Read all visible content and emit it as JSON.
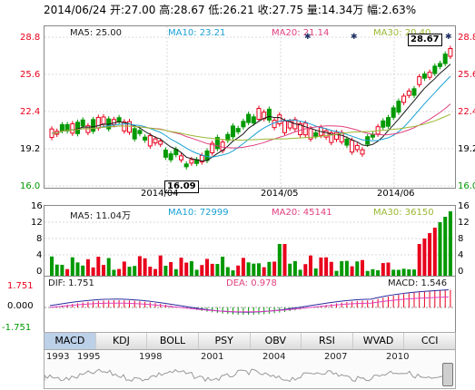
{
  "header": {
    "text": "2014/06/24 开:27.00  高:28.67  低:26.21  收:27.75  量:14.34万  幅:2.63%"
  },
  "price": {
    "ma5": "MA5: 25.00",
    "ma10": "MA10: 23.21",
    "ma20": "MA20: 21.14",
    "ma30": "MA30: 20.40",
    "y_ticks": [
      "28.8",
      "25.6",
      "22.4",
      "19.2",
      "16.0"
    ],
    "high_label": "28.67",
    "low_label": "16.09",
    "dates": [
      "2014/04",
      "2014/05",
      "2014/06"
    ],
    "colors": {
      "up": "#e8001c",
      "down": "#009900",
      "ma5": "#1a1a1a",
      "ma10": "#1ba1d4",
      "ma20": "#e0407e",
      "ma30": "#9ab832"
    }
  },
  "volume": {
    "ma5": "MA5: 11.04万",
    "ma10": "MA10: 72999",
    "ma20": "MA20: 45141",
    "ma30": "MA30: 36150",
    "y_ticks": [
      "16",
      "12",
      "8",
      "4",
      "0"
    ]
  },
  "macd": {
    "dif": "DIF: 1.751",
    "dea": "DEA: 0.978",
    "macd": "MACD: 1.546",
    "y_ticks": [
      "1.751",
      "0.000",
      "-1.751"
    ]
  },
  "tabs": [
    "MACD",
    "KDJ",
    "BOLL",
    "PSY",
    "OBV",
    "RSI",
    "WVAD",
    "CCI"
  ],
  "timeline": {
    "years": [
      "1993",
      "1995",
      "1998",
      "2001",
      "2004",
      "2007",
      "2010"
    ]
  }
}
